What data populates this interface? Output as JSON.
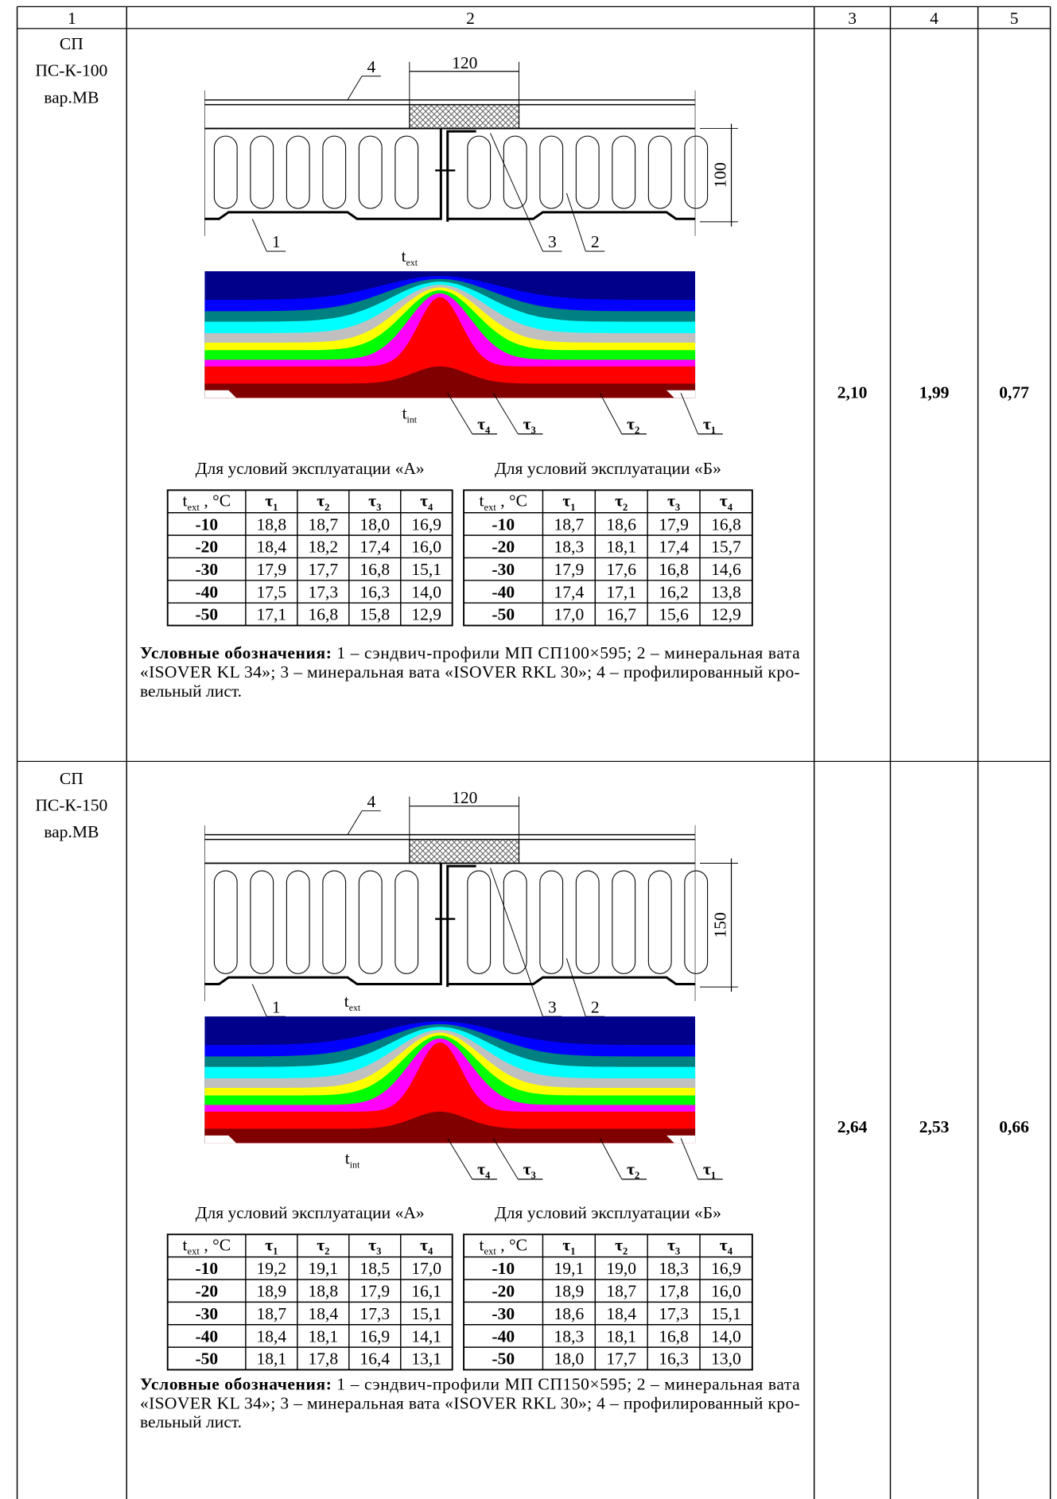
{
  "header": {
    "columns": [
      "1",
      "2",
      "3",
      "4",
      "5"
    ]
  },
  "rows": [
    {
      "name": [
        "СП",
        "ПС-К-100",
        "вар.МВ"
      ],
      "diagram": {
        "sheet": "4",
        "joint_width": "120",
        "thickness": "100",
        "panel": "1",
        "wool_main": "2",
        "wool_joint": "3",
        "t_ext": {
          "base": "t",
          "sub": "ext"
        },
        "t_int": {
          "base": "t",
          "sub": "int"
        },
        "taus": [
          {
            "base": "τ",
            "sub": "4"
          },
          {
            "base": "τ",
            "sub": "3"
          },
          {
            "base": "τ",
            "sub": "2"
          },
          {
            "base": "τ",
            "sub": "1"
          }
        ]
      },
      "tables": [
        {
          "caption": "Для условий эксплуатации «А»",
          "header": [
            {
              "base": "t",
              "sub": "ext",
              "suffix": " , °C"
            },
            {
              "base": "τ",
              "sub": "1"
            },
            {
              "base": "τ",
              "sub": "2"
            },
            {
              "base": "τ",
              "sub": "3"
            },
            {
              "base": "τ",
              "sub": "4"
            }
          ],
          "rows": [
            [
              "-10",
              "18,8",
              "18,7",
              "18,0",
              "16,9"
            ],
            [
              "-20",
              "18,4",
              "18,2",
              "17,4",
              "16,0"
            ],
            [
              "-30",
              "17,9",
              "17,7",
              "16,8",
              "15,1"
            ],
            [
              "-40",
              "17,5",
              "17,3",
              "16,3",
              "14,0"
            ],
            [
              "-50",
              "17,1",
              "16,8",
              "15,8",
              "12,9"
            ]
          ]
        },
        {
          "caption": "Для условий эксплуатации «Б»",
          "header": [
            {
              "base": "t",
              "sub": "ext",
              "suffix": " , °C"
            },
            {
              "base": "τ",
              "sub": "1"
            },
            {
              "base": "τ",
              "sub": "2"
            },
            {
              "base": "τ",
              "sub": "3"
            },
            {
              "base": "τ",
              "sub": "4"
            }
          ],
          "rows": [
            [
              "-10",
              "18,7",
              "18,6",
              "17,9",
              "16,8"
            ],
            [
              "-20",
              "18,3",
              "18,1",
              "17,4",
              "15,7"
            ],
            [
              "-30",
              "17,9",
              "17,6",
              "16,8",
              "14,6"
            ],
            [
              "-40",
              "17,4",
              "17,1",
              "16,2",
              "13,8"
            ],
            [
              "-50",
              "17,0",
              "16,7",
              "15,6",
              "12,9"
            ]
          ]
        }
      ],
      "legend": {
        "label": "Условные обозначения:",
        "lines": [
          " 1 – сэндвич-профили МП СП100×595; 2 – минеральная вата",
          "«ISOVER KL 34»; 3 – минеральная вата «ISOVER RKL 30»; 4 – профилированный кро-",
          "вельный лист."
        ]
      },
      "values": [
        "2,10",
        "1,99",
        "0,77"
      ]
    },
    {
      "name": [
        "СП",
        "ПС-К-150",
        "вар.МВ"
      ],
      "diagram": {
        "sheet": "4",
        "joint_width": "120",
        "thickness": "150",
        "panel": "1",
        "wool_main": "2",
        "wool_joint": "3",
        "t_ext": {
          "base": "t",
          "sub": "ext"
        },
        "t_int": {
          "base": "t",
          "sub": "int"
        },
        "taus": [
          {
            "base": "τ",
            "sub": "4"
          },
          {
            "base": "τ",
            "sub": "3"
          },
          {
            "base": "τ",
            "sub": "2"
          },
          {
            "base": "τ",
            "sub": "1"
          }
        ]
      },
      "tables": [
        {
          "caption": "Для условий эксплуатации «А»",
          "header": [
            {
              "base": "t",
              "sub": "ext",
              "suffix": " , °C"
            },
            {
              "base": "τ",
              "sub": "1"
            },
            {
              "base": "τ",
              "sub": "2"
            },
            {
              "base": "τ",
              "sub": "3"
            },
            {
              "base": "τ",
              "sub": "4"
            }
          ],
          "rows": [
            [
              "-10",
              "19,2",
              "19,1",
              "18,5",
              "17,0"
            ],
            [
              "-20",
              "18,9",
              "18,8",
              "17,9",
              "16,1"
            ],
            [
              "-30",
              "18,7",
              "18,4",
              "17,3",
              "15,1"
            ],
            [
              "-40",
              "18,4",
              "18,1",
              "16,9",
              "14,1"
            ],
            [
              "-50",
              "18,1",
              "17,8",
              "16,4",
              "13,1"
            ]
          ]
        },
        {
          "caption": "Для условий эксплуатации «Б»",
          "header": [
            {
              "base": "t",
              "sub": "ext",
              "suffix": " , °C"
            },
            {
              "base": "τ",
              "sub": "1"
            },
            {
              "base": "τ",
              "sub": "2"
            },
            {
              "base": "τ",
              "sub": "3"
            },
            {
              "base": "τ",
              "sub": "4"
            }
          ],
          "rows": [
            [
              "-10",
              "19,1",
              "19,0",
              "18,3",
              "16,9"
            ],
            [
              "-20",
              "18,9",
              "18,7",
              "17,8",
              "16,0"
            ],
            [
              "-30",
              "18,6",
              "18,4",
              "17,3",
              "15,1"
            ],
            [
              "-40",
              "18,3",
              "18,1",
              "16,8",
              "14,0"
            ],
            [
              "-50",
              "18,0",
              "17,7",
              "16,3",
              "13,0"
            ]
          ]
        }
      ],
      "legend": {
        "label": "Условные обозначения:",
        "lines": [
          " 1 – сэндвич-профили МП СП150×595; 2 – минеральная вата",
          "«ISOVER KL 34»; 3 – минеральная вата «ISOVER RKL 30»; 4 – профилированный кро-",
          "вельный лист."
        ]
      },
      "values": [
        "2,64",
        "2,53",
        "0,66"
      ]
    }
  ]
}
